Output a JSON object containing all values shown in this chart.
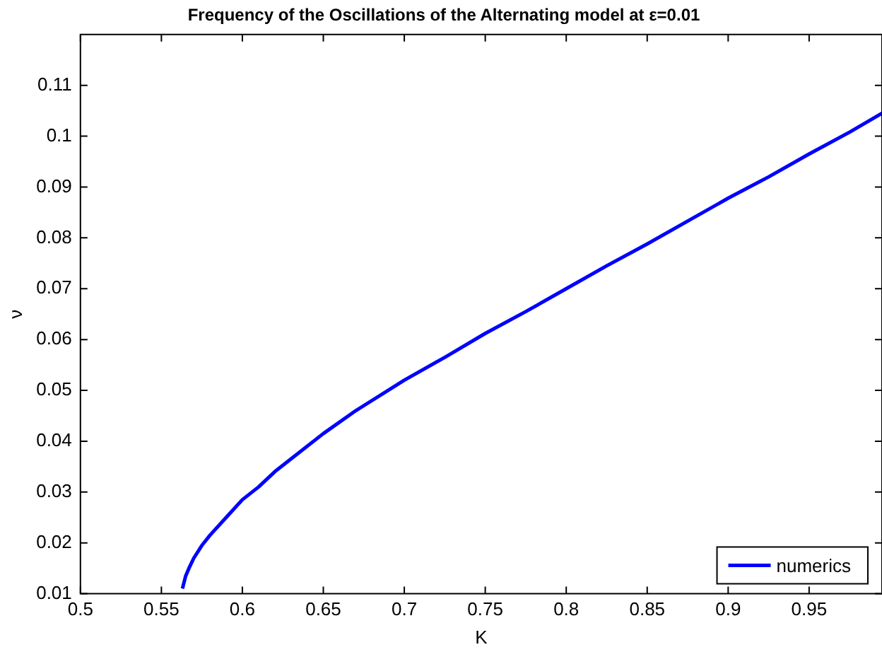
{
  "chart_data": {
    "type": "line",
    "title": "Frequency of the Oscillations of the Alternating model at ε=0.01",
    "xlabel": "K",
    "ylabel": "ν",
    "x": [
      0.563,
      0.565,
      0.567,
      0.57,
      0.575,
      0.58,
      0.59,
      0.6,
      0.61,
      0.62,
      0.63,
      0.65,
      0.67,
      0.7,
      0.725,
      0.75,
      0.775,
      0.8,
      0.825,
      0.85,
      0.875,
      0.9,
      0.925,
      0.95,
      0.975,
      0.995
    ],
    "series": [
      {
        "name": "numerics",
        "color": "#0000ff",
        "values": [
          0.011,
          0.0135,
          0.015,
          0.017,
          0.0195,
          0.0215,
          0.025,
          0.0285,
          0.031,
          0.034,
          0.0365,
          0.0415,
          0.046,
          0.052,
          0.0565,
          0.0612,
          0.0655,
          0.07,
          0.0745,
          0.0788,
          0.0833,
          0.0878,
          0.092,
          0.0965,
          0.1008,
          0.1045
        ]
      }
    ],
    "xlim": [
      0.5,
      0.995
    ],
    "xticks": [
      0.5,
      0.55,
      0.6,
      0.65,
      0.7,
      0.75,
      0.8,
      0.85,
      0.9,
      0.95
    ],
    "ylim": [
      0.01,
      0.12
    ],
    "yticks": [
      0.01,
      0.02,
      0.03,
      0.04,
      0.05,
      0.06,
      0.07,
      0.08,
      0.09,
      0.1,
      0.11
    ],
    "grid": false,
    "legend": "bottom right",
    "line_style": "solid",
    "marker": "none"
  }
}
